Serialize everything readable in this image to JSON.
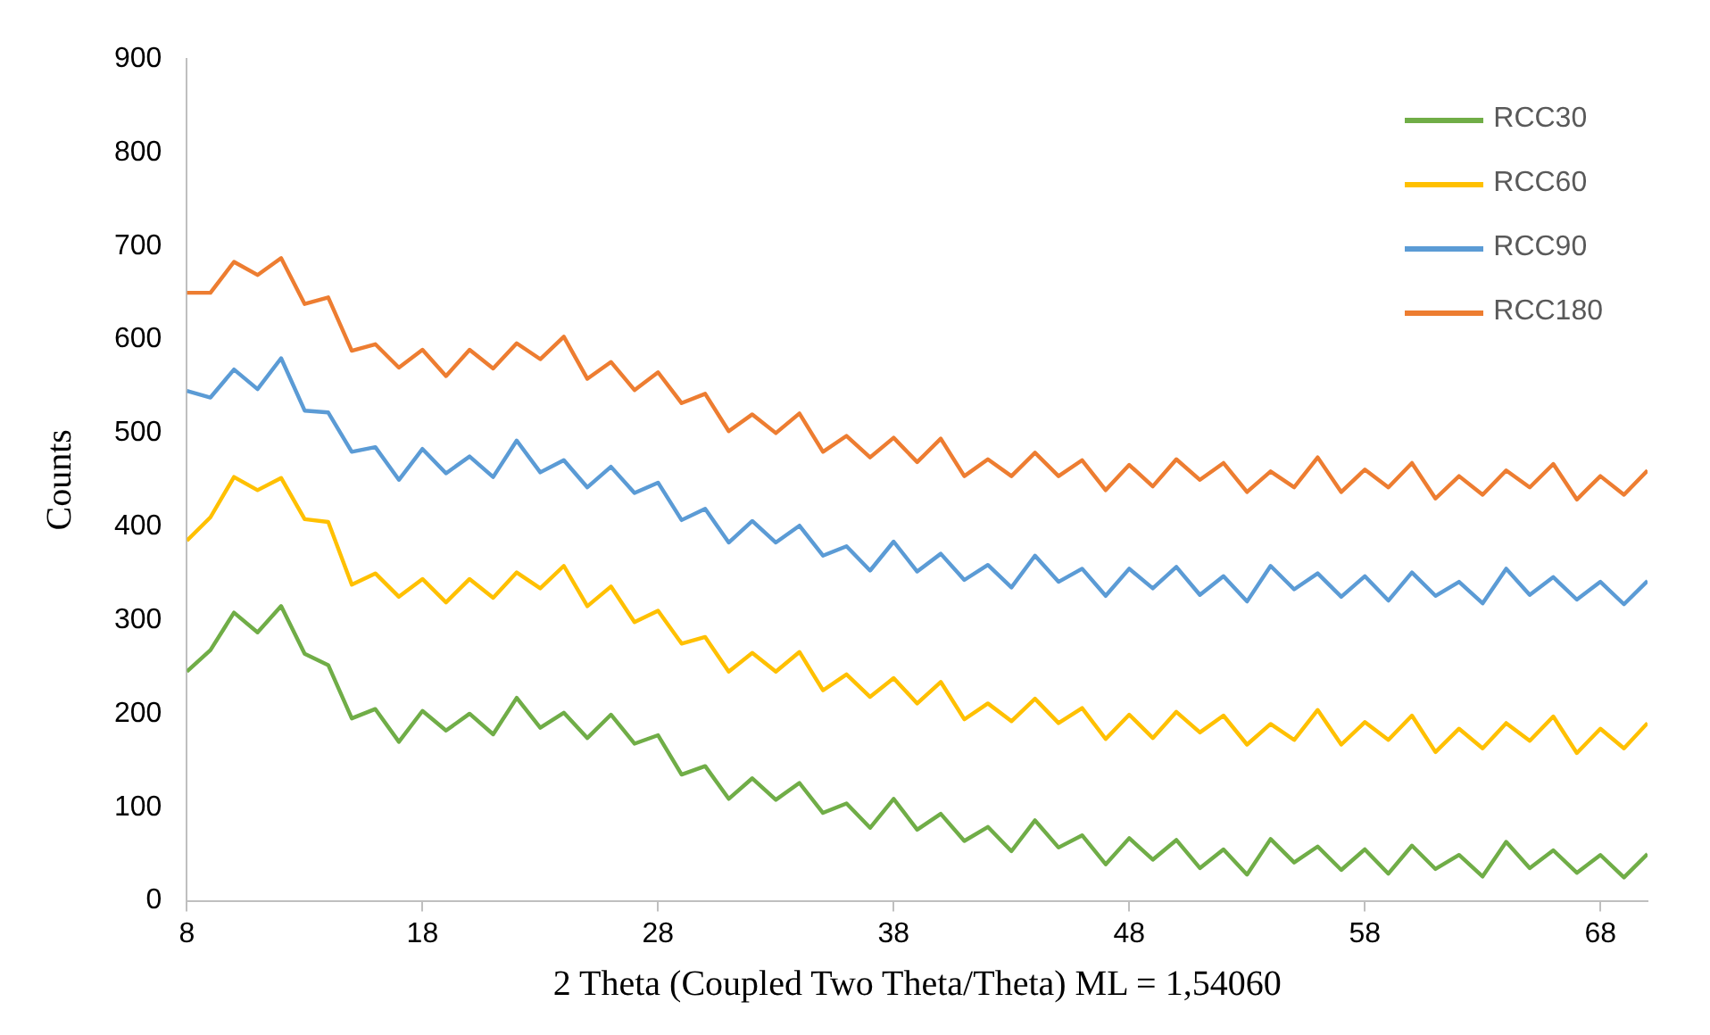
{
  "chart_data": {
    "type": "line",
    "xlabel": "2 Theta (Coupled Two Theta/Theta) ML = 1,54060",
    "ylabel": "Counts",
    "x": [
      8,
      9,
      10,
      11,
      12,
      13,
      14,
      15,
      16,
      17,
      18,
      19,
      20,
      21,
      22,
      23,
      24,
      25,
      26,
      27,
      28,
      29,
      30,
      31,
      32,
      33,
      34,
      35,
      36,
      37,
      38,
      39,
      40,
      41,
      42,
      43,
      44,
      45,
      46,
      47,
      48,
      49,
      50,
      51,
      52,
      53,
      54,
      55,
      56,
      57,
      58,
      59,
      60,
      61,
      62,
      63,
      64,
      65,
      66,
      67,
      68,
      69,
      70
    ],
    "series": [
      {
        "name": "RCC30",
        "color": "#70ad47",
        "values": [
          245,
          268,
          308,
          287,
          315,
          264,
          252,
          195,
          205,
          170,
          203,
          182,
          200,
          178,
          217,
          185,
          201,
          174,
          199,
          168,
          177,
          135,
          144,
          109,
          131,
          108,
          126,
          94,
          104,
          78,
          109,
          76,
          93,
          64,
          79,
          53,
          86,
          57,
          70,
          39,
          67,
          44,
          65,
          35,
          55,
          28,
          66,
          41,
          58,
          33,
          55,
          29,
          59,
          34,
          49,
          26,
          63,
          35,
          54,
          30,
          49,
          25,
          50
        ]
      },
      {
        "name": "RCC60",
        "color": "#ffc000",
        "values": [
          385,
          410,
          453,
          439,
          452,
          408,
          405,
          338,
          350,
          325,
          344,
          319,
          344,
          324,
          351,
          334,
          358,
          315,
          336,
          298,
          310,
          275,
          282,
          245,
          265,
          245,
          266,
          225,
          242,
          218,
          238,
          211,
          234,
          194,
          211,
          192,
          216,
          190,
          206,
          173,
          199,
          174,
          202,
          180,
          198,
          167,
          189,
          172,
          204,
          167,
          191,
          172,
          198,
          159,
          184,
          163,
          190,
          171,
          197,
          158,
          184,
          163,
          190
        ]
      },
      {
        "name": "RCC90",
        "color": "#5b9bd5",
        "values": [
          545,
          538,
          568,
          547,
          580,
          524,
          522,
          480,
          485,
          450,
          483,
          457,
          475,
          453,
          492,
          458,
          471,
          442,
          464,
          436,
          447,
          407,
          419,
          383,
          406,
          383,
          401,
          369,
          379,
          353,
          384,
          352,
          371,
          343,
          359,
          335,
          369,
          341,
          355,
          326,
          355,
          334,
          357,
          327,
          347,
          320,
          358,
          333,
          350,
          325,
          347,
          321,
          351,
          326,
          341,
          318,
          355,
          327,
          346,
          322,
          341,
          317,
          342
        ]
      },
      {
        "name": "RCC180",
        "color": "#ed7d31",
        "values": [
          650,
          650,
          683,
          669,
          687,
          638,
          645,
          588,
          595,
          570,
          589,
          561,
          589,
          569,
          596,
          579,
          603,
          558,
          576,
          546,
          565,
          532,
          542,
          502,
          520,
          500,
          521,
          480,
          497,
          474,
          495,
          469,
          494,
          454,
          472,
          454,
          479,
          454,
          471,
          439,
          466,
          443,
          472,
          450,
          468,
          437,
          459,
          442,
          474,
          437,
          461,
          442,
          468,
          430,
          454,
          434,
          460,
          442,
          467,
          429,
          454,
          434,
          460
        ]
      }
    ],
    "xlim": [
      8,
      70
    ],
    "xticks": [
      8,
      18,
      28,
      38,
      48,
      58,
      68
    ],
    "ylim": [
      0,
      900
    ],
    "yticks": [
      0,
      100,
      200,
      300,
      400,
      500,
      600,
      700,
      800,
      900
    ],
    "grid": false,
    "legend": "top right",
    "marker": "none"
  }
}
